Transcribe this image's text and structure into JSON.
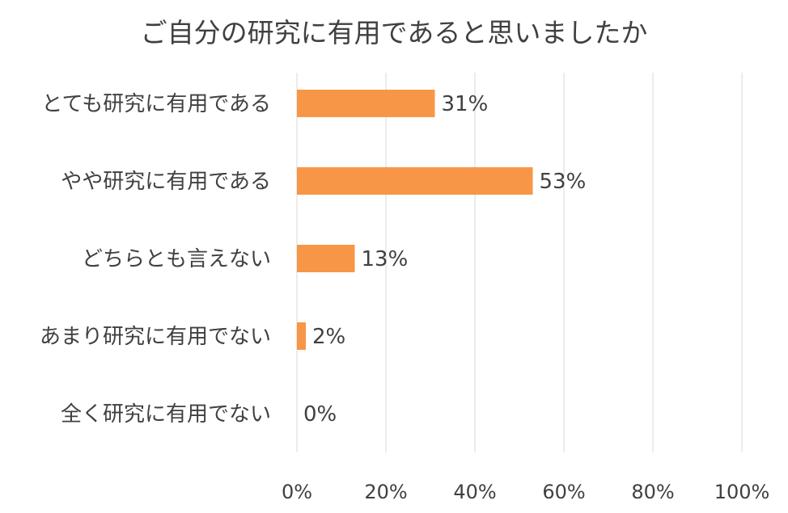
{
  "chart_data": {
    "type": "bar",
    "orientation": "horizontal",
    "title": "ご自分の研究に有用であると思いましたか",
    "categories": [
      "とても研究に有用である",
      "やや研究に有用である",
      "どちらとも言えない",
      "あまり研究に有用でない",
      "全く研究に有用でない"
    ],
    "values": [
      31,
      53,
      13,
      2,
      0
    ],
    "value_labels": [
      "31%",
      "53%",
      "13%",
      "2%",
      "0%"
    ],
    "xlim": [
      0,
      100
    ],
    "x_ticks": [
      "0%",
      "20%",
      "40%",
      "60%",
      "80%",
      "100%"
    ],
    "grid": true,
    "legend": "none",
    "colors": {
      "bar": "#F79646",
      "grid": "#D9D9D9",
      "text": "#404040"
    }
  }
}
